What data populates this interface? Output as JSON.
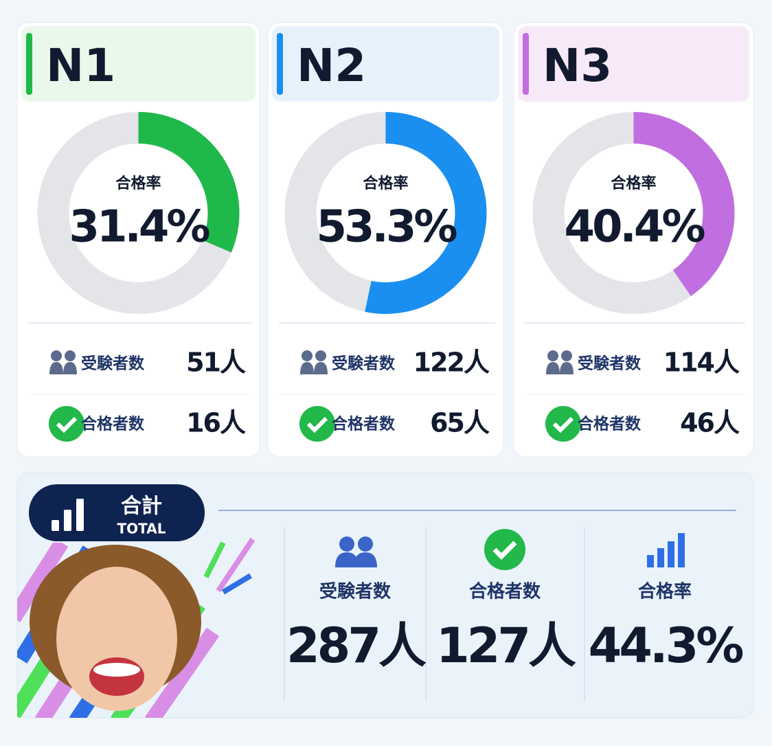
{
  "cards": [
    {
      "level": "N1",
      "color": "#1fb84a",
      "tint": "#e9f8ea",
      "rate": {
        "value": 31.4,
        "label": "31.4%"
      },
      "examinees": "51人",
      "passers": "16人"
    },
    {
      "level": "N2",
      "color": "#1a8ff0",
      "tint": "#e7f1fc",
      "rate": {
        "value": 53.3,
        "label": "53.3%"
      },
      "examinees": "122人",
      "passers": "65人"
    },
    {
      "level": "N3",
      "color": "#c16ee0",
      "tint": "#f8e9f8",
      "rate": {
        "value": 40.4,
        "label": "40.4%"
      },
      "examinees": "114人",
      "passers": "46人"
    }
  ],
  "labels": {
    "rate": "合格率",
    "examinees": "受験者数",
    "passers": "合格者数"
  },
  "total": {
    "title": "合計",
    "subtitle": "TOTAL",
    "examinees": "287人",
    "passers": "127人",
    "rate": "44.3%"
  }
}
